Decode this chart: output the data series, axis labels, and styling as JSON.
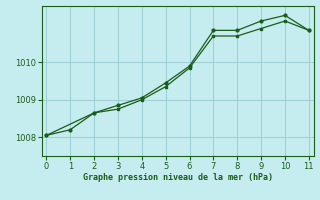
{
  "title": "Graphe pression niveau de la mer (hPa)",
  "bg_color": "#c5edf0",
  "line_color": "#1a5c1a",
  "grid_color": "#9ecdd4",
  "xlim": [
    -0.2,
    11.2
  ],
  "ylim": [
    1007.5,
    1011.5
  ],
  "xticks": [
    0,
    1,
    2,
    3,
    4,
    5,
    6,
    7,
    8,
    9,
    10,
    11
  ],
  "yticks": [
    1008,
    1009,
    1010
  ],
  "series1_x": [
    0,
    1,
    2,
    3,
    4,
    5,
    6,
    7,
    8,
    9,
    10,
    11
  ],
  "series1_y": [
    1008.05,
    1008.2,
    1008.65,
    1008.85,
    1009.05,
    1009.45,
    1009.9,
    1010.85,
    1010.85,
    1011.1,
    1011.25,
    1010.85
  ],
  "series2_x": [
    0,
    2,
    3,
    4,
    5,
    6,
    7,
    8,
    9,
    10,
    11
  ],
  "series2_y": [
    1008.05,
    1008.65,
    1008.75,
    1009.0,
    1009.35,
    1009.85,
    1010.7,
    1010.7,
    1010.9,
    1011.1,
    1010.85
  ]
}
